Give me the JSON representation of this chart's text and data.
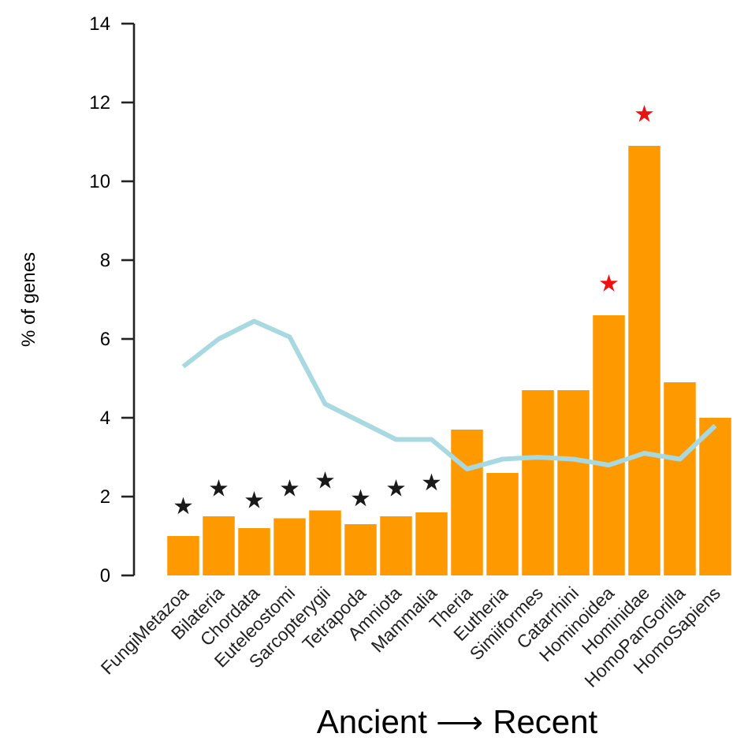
{
  "chart_data": {
    "type": "bar",
    "xlabel": "Ancient ⟶ Recent",
    "ylabel": "% of genes",
    "categories": [
      "FungiMetazoa",
      "Bilateria",
      "Chordata",
      "Euteleostomi",
      "Sarcopterygii",
      "Tetrapoda",
      "Amniota",
      "Mammalia",
      "Theria",
      "Eutheria",
      "Simiiformes",
      "Catarrhini",
      "Hominoidea",
      "Hominidae",
      "HomoPanGorilla",
      "HomoSapiens"
    ],
    "ylim": [
      0,
      14
    ],
    "yticks": [
      0,
      2,
      4,
      6,
      8,
      10,
      12,
      14
    ],
    "grid": false,
    "series": [
      {
        "color": "#ff9900",
        "values": [
          1.0,
          1.5,
          1.2,
          1.45,
          1.65,
          1.3,
          1.5,
          1.6,
          3.7,
          2.6,
          4.7,
          4.7,
          6.6,
          10.9,
          4.9,
          4.0
        ]
      },
      {
        "type": "line",
        "color": "#a8d8e0",
        "values": [
          5.3,
          6.0,
          6.45,
          6.05,
          4.35,
          3.9,
          3.45,
          3.45,
          2.7,
          2.95,
          3.0,
          2.95,
          2.8,
          3.1,
          2.95,
          3.8
        ]
      },
      {
        "type": "scatter",
        "marker": "star",
        "color": "#1a1a1a",
        "x": [
          "FungiMetazoa",
          "Bilateria",
          "Chordata",
          "Euteleostomi",
          "Sarcopterygii",
          "Tetrapoda",
          "Amniota",
          "Mammalia"
        ],
        "values": [
          1.75,
          2.2,
          1.9,
          2.2,
          2.4,
          1.95,
          2.2,
          2.35
        ]
      },
      {
        "type": "scatter",
        "marker": "star",
        "color": "#ee1111",
        "x": [
          "Hominoidea",
          "Hominidae"
        ],
        "values": [
          7.4,
          11.7
        ]
      }
    ]
  }
}
